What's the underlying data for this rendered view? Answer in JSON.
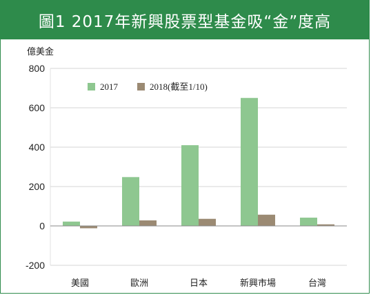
{
  "header": {
    "title": "圖1 2017年新興股票型基金吸“金”度高"
  },
  "colors": {
    "brand_green": "#2e8b4b",
    "series_2017": "#8ec790",
    "series_2018": "#9b8a73"
  },
  "chart_data": {
    "type": "bar",
    "title": "圖1 2017年新興股票型基金吸“金”度高",
    "ylabel": "億美金",
    "xlabel": "",
    "categories": [
      "美國",
      "歐洲",
      "日本",
      "新興市場",
      "台灣"
    ],
    "series": [
      {
        "name": "2017",
        "values": [
          22,
          248,
          410,
          650,
          42
        ]
      },
      {
        "name": "2018(截至1/10)",
        "values": [
          -12,
          28,
          36,
          57,
          8
        ]
      }
    ],
    "ylim": [
      -200,
      800
    ],
    "yticks": [
      "800",
      "600",
      "400",
      "200",
      "0",
      "-200"
    ],
    "grid": true,
    "legend": "top-left"
  }
}
